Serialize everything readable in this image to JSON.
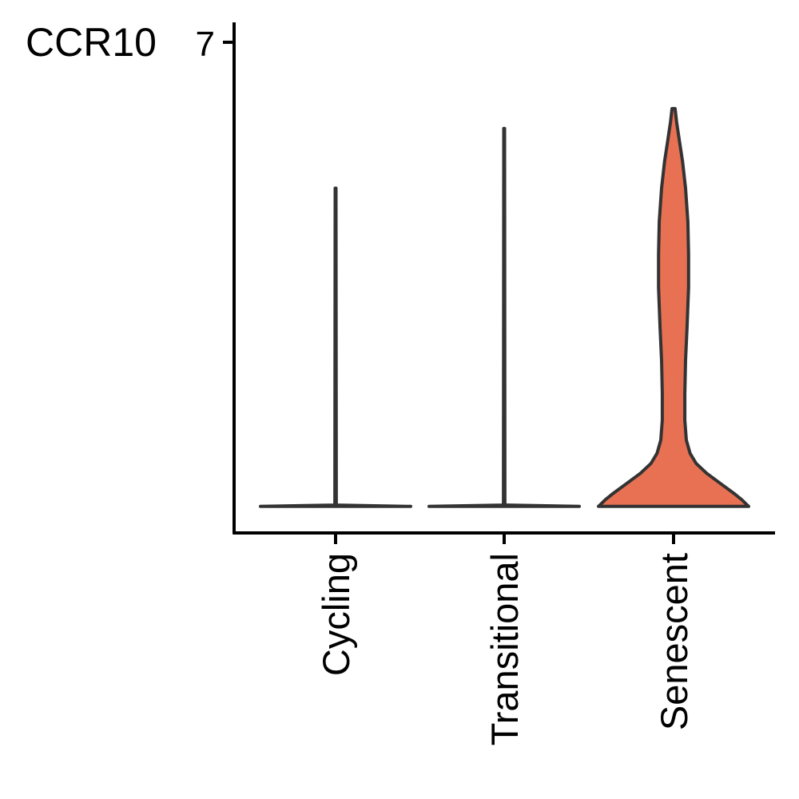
{
  "chart_data": {
    "type": "violin",
    "title": "CCR10",
    "xlabel": "",
    "ylabel": "",
    "ylim": [
      -0.4,
      7.3
    ],
    "y_ticks": [
      7
    ],
    "y_tick_labels": [
      "7"
    ],
    "categories": [
      "Cycling",
      "Transitional",
      "Senescent"
    ],
    "grid": false,
    "legend": "none",
    "colors": {
      "fill_default": "#ffffff",
      "fill_senescent": "#e87153",
      "outline": "#333333",
      "axis": "#000000"
    },
    "violins": [
      {
        "category": "Cycling",
        "fill": "#ffffff",
        "profile": [
          [
            0,
            1.0
          ],
          [
            0.02,
            0.01
          ],
          [
            4.8,
            0.005
          ]
        ]
      },
      {
        "category": "Transitional",
        "fill": "#ffffff",
        "profile": [
          [
            0,
            1.0
          ],
          [
            0.02,
            0.01
          ],
          [
            5.7,
            0.005
          ]
        ]
      },
      {
        "category": "Senescent",
        "fill": "#e87153",
        "profile": [
          [
            0,
            1.0
          ],
          [
            0.02,
            0.98
          ],
          [
            0.1,
            0.91
          ],
          [
            0.2,
            0.8
          ],
          [
            0.35,
            0.62
          ],
          [
            0.5,
            0.44
          ],
          [
            0.65,
            0.3
          ],
          [
            0.8,
            0.22
          ],
          [
            1.0,
            0.17
          ],
          [
            1.3,
            0.15
          ],
          [
            1.7,
            0.15
          ],
          [
            2.2,
            0.16
          ],
          [
            2.7,
            0.18
          ],
          [
            3.3,
            0.2
          ],
          [
            3.8,
            0.2
          ],
          [
            4.3,
            0.19
          ],
          [
            4.8,
            0.16
          ],
          [
            5.2,
            0.12
          ],
          [
            5.5,
            0.08
          ],
          [
            5.8,
            0.04
          ],
          [
            6.0,
            0.02
          ]
        ]
      }
    ]
  }
}
